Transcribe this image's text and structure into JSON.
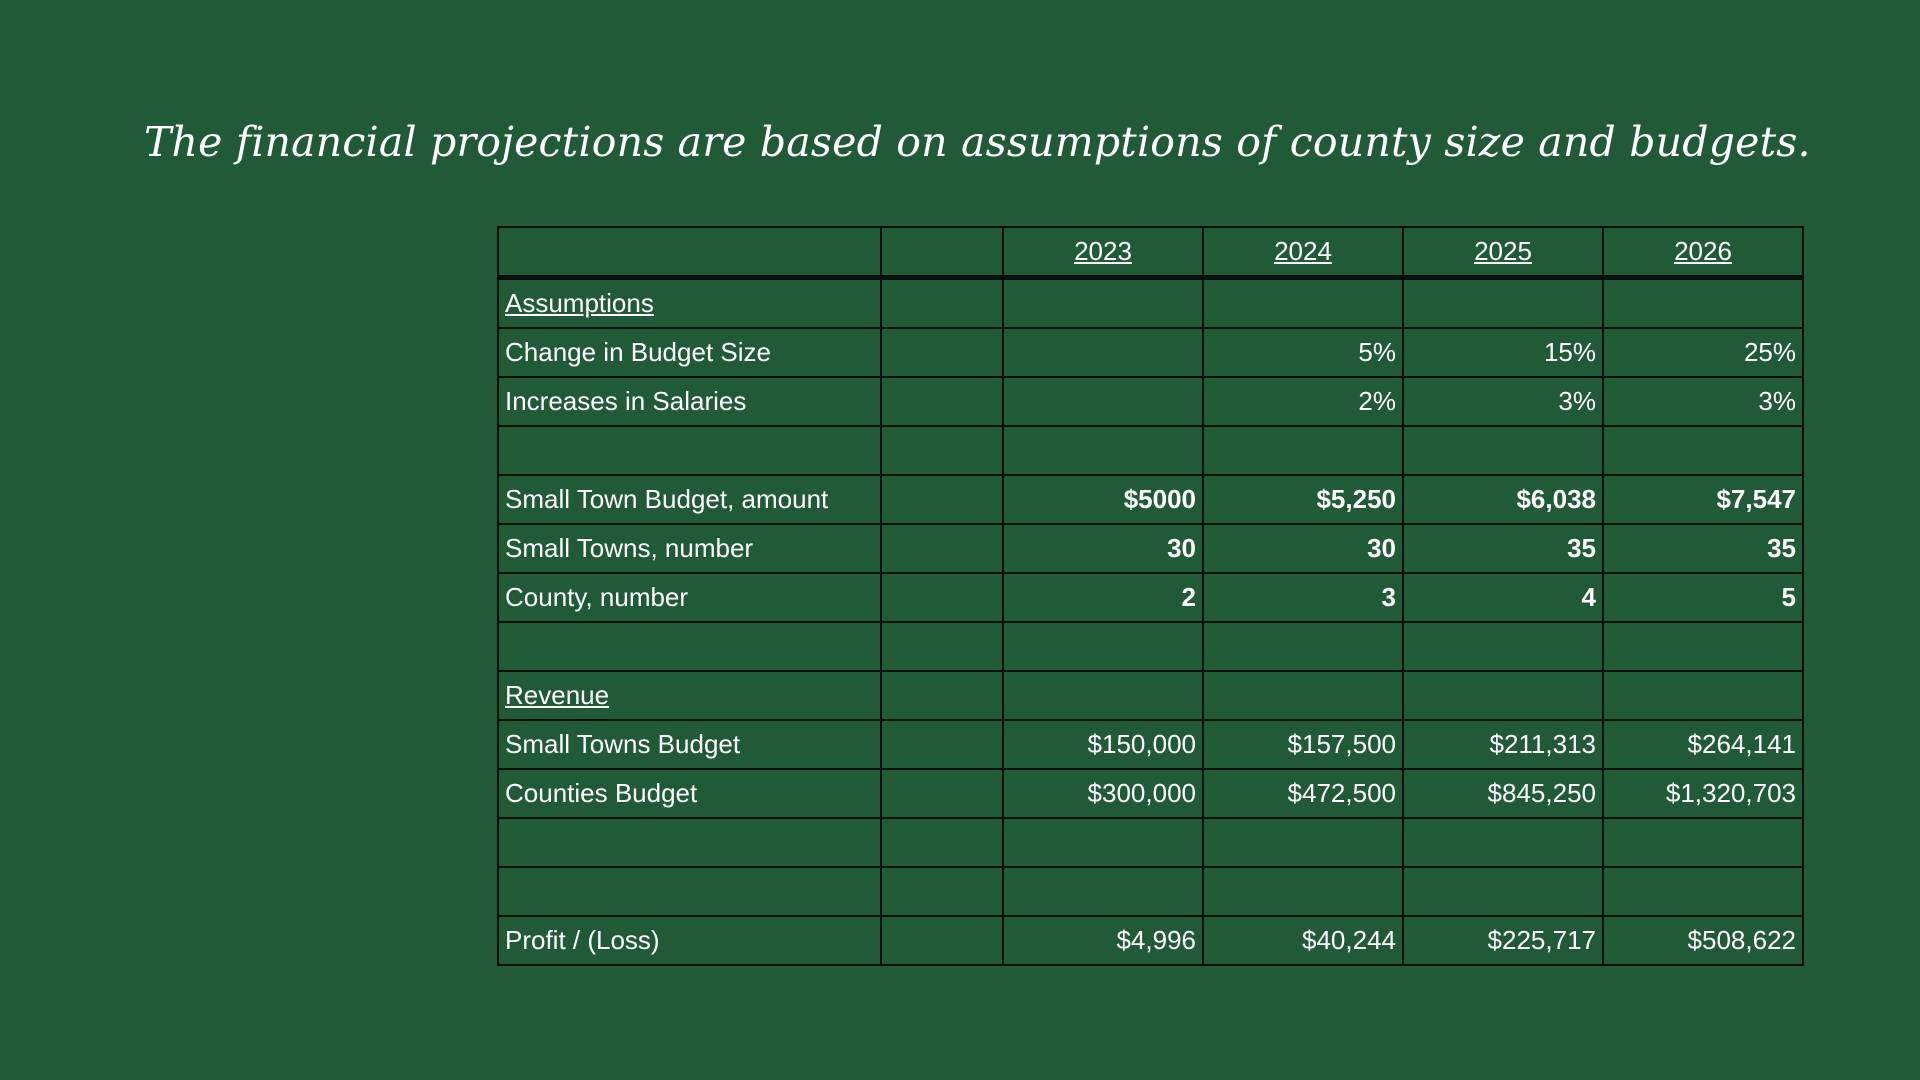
{
  "slide": {
    "title": "The financial projections are based on assumptions of county size and budgets."
  },
  "table": {
    "years": [
      "2023",
      "2024",
      "2025",
      "2026"
    ],
    "rows": [
      {
        "kind": "section",
        "label": "Assumptions",
        "values": [
          "",
          "",
          "",
          ""
        ]
      },
      {
        "kind": "normal",
        "label": "Change in Budget Size",
        "values": [
          "",
          "5%",
          "15%",
          "25%"
        ]
      },
      {
        "kind": "normal",
        "label": "Increases in Salaries",
        "values": [
          "",
          "2%",
          "3%",
          "3%"
        ]
      },
      {
        "kind": "empty",
        "label": "",
        "values": [
          "",
          "",
          "",
          ""
        ]
      },
      {
        "kind": "bold",
        "label": "Small Town Budget, amount",
        "values": [
          "$5000",
          "$5,250",
          "$6,038",
          "$7,547"
        ]
      },
      {
        "kind": "bold",
        "label": "Small Towns, number",
        "values": [
          "30",
          "30",
          "35",
          "35"
        ]
      },
      {
        "kind": "bold",
        "label": "County, number",
        "values": [
          "2",
          "3",
          "4",
          "5"
        ]
      },
      {
        "kind": "empty",
        "label": "",
        "values": [
          "",
          "",
          "",
          ""
        ]
      },
      {
        "kind": "section",
        "label": "Revenue",
        "values": [
          "",
          "",
          "",
          ""
        ]
      },
      {
        "kind": "normal",
        "label": "Small Towns Budget",
        "values": [
          "$150,000",
          "$157,500",
          "$211,313",
          "$264,141"
        ]
      },
      {
        "kind": "normal",
        "label": "Counties Budget",
        "values": [
          "$300,000",
          "$472,500",
          "$845,250",
          "$1,320,703"
        ]
      },
      {
        "kind": "empty",
        "label": "",
        "values": [
          "",
          "",
          "",
          ""
        ]
      },
      {
        "kind": "empty",
        "label": "",
        "values": [
          "",
          "",
          "",
          ""
        ]
      },
      {
        "kind": "normal",
        "label": "Profit / (Loss)",
        "values": [
          "$4,996",
          "$40,244",
          "$225,717",
          "$508,622"
        ]
      }
    ]
  },
  "colors": {
    "background": "#205a37",
    "text": "#ffffff",
    "grid": "#0b0f0c"
  }
}
